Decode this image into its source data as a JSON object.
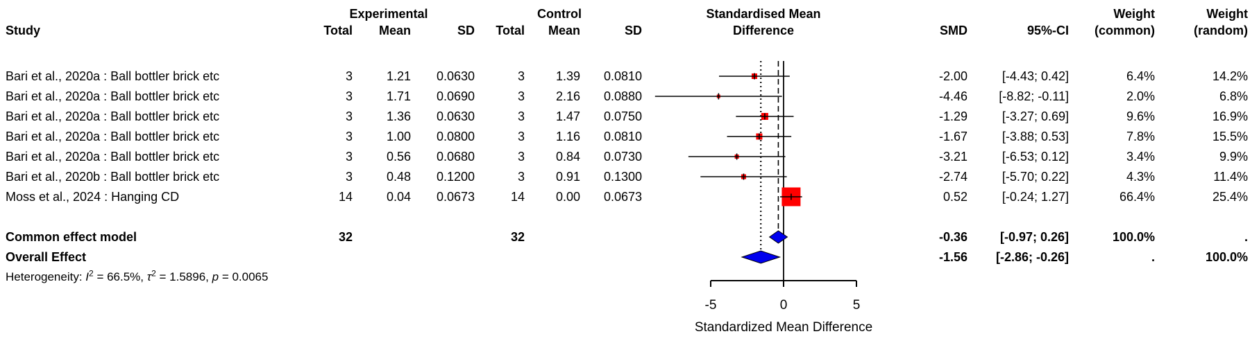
{
  "header": {
    "study": "Study",
    "experimental": "Experimental",
    "control": "Control",
    "smd_line1": "Standardised Mean",
    "smd_line2": "Difference",
    "total": "Total",
    "mean": "Mean",
    "sd": "SD",
    "smd": "SMD",
    "ci": "95%-CI",
    "weight": "Weight",
    "weight_common": "(common)",
    "weight_random": "(random)"
  },
  "chart_data": {
    "type": "forest",
    "effect_measure": "SMD",
    "x_axis": {
      "label": "Standardized Mean Difference",
      "tick_labels": [
        "-5",
        "0",
        "5"
      ],
      "tick_values": [
        -5,
        0,
        5
      ],
      "range": [
        -9,
        6
      ]
    },
    "reference_line": 0,
    "colors": {
      "square": "#ff0000",
      "diamond": "#0000ee",
      "line": "#000000",
      "text": "#000000"
    },
    "studies": [
      {
        "label": "Bari et al., 2020a : Ball bottler brick etc",
        "exp_total": "3",
        "exp_mean": "1.21",
        "exp_sd": "0.0630",
        "ctrl_total": "3",
        "ctrl_mean": "1.39",
        "ctrl_sd": "0.0810",
        "smd": -2.0,
        "ci_low": -4.43,
        "ci_high": 0.42,
        "smd_text": "-2.00",
        "ci_text": "[-4.43; 0.42]",
        "weight_common": 6.4,
        "weight_random": 14.2,
        "weight_common_text": "6.4%",
        "weight_random_text": "14.2%"
      },
      {
        "label": "Bari et al., 2020a : Ball bottler brick etc",
        "exp_total": "3",
        "exp_mean": "1.71",
        "exp_sd": "0.0690",
        "ctrl_total": "3",
        "ctrl_mean": "2.16",
        "ctrl_sd": "0.0880",
        "smd": -4.46,
        "ci_low": -8.82,
        "ci_high": -0.11,
        "smd_text": "-4.46",
        "ci_text": "[-8.82; -0.11]",
        "weight_common": 2.0,
        "weight_random": 6.8,
        "weight_common_text": "2.0%",
        "weight_random_text": "6.8%"
      },
      {
        "label": "Bari et al., 2020a : Ball bottler brick etc",
        "exp_total": "3",
        "exp_mean": "1.36",
        "exp_sd": "0.0630",
        "ctrl_total": "3",
        "ctrl_mean": "1.47",
        "ctrl_sd": "0.0750",
        "smd": -1.29,
        "ci_low": -3.27,
        "ci_high": 0.69,
        "smd_text": "-1.29",
        "ci_text": "[-3.27; 0.69]",
        "weight_common": 9.6,
        "weight_random": 16.9,
        "weight_common_text": "9.6%",
        "weight_random_text": "16.9%"
      },
      {
        "label": "Bari et al., 2020a : Ball bottler brick etc",
        "exp_total": "3",
        "exp_mean": "1.00",
        "exp_sd": "0.0800",
        "ctrl_total": "3",
        "ctrl_mean": "1.16",
        "ctrl_sd": "0.0810",
        "smd": -1.67,
        "ci_low": -3.88,
        "ci_high": 0.53,
        "smd_text": "-1.67",
        "ci_text": "[-3.88; 0.53]",
        "weight_common": 7.8,
        "weight_random": 15.5,
        "weight_common_text": "7.8%",
        "weight_random_text": "15.5%"
      },
      {
        "label": "Bari et al., 2020a : Ball bottler brick etc",
        "exp_total": "3",
        "exp_mean": "0.56",
        "exp_sd": "0.0680",
        "ctrl_total": "3",
        "ctrl_mean": "0.84",
        "ctrl_sd": "0.0730",
        "smd": -3.21,
        "ci_low": -6.53,
        "ci_high": 0.12,
        "smd_text": "-3.21",
        "ci_text": "[-6.53; 0.12]",
        "weight_common": 3.4,
        "weight_random": 9.9,
        "weight_common_text": "3.4%",
        "weight_random_text": "9.9%"
      },
      {
        "label": "Bari et al., 2020b : Ball bottler brick etc",
        "exp_total": "3",
        "exp_mean": "0.48",
        "exp_sd": "0.1200",
        "ctrl_total": "3",
        "ctrl_mean": "0.91",
        "ctrl_sd": "0.1300",
        "smd": -2.74,
        "ci_low": -5.7,
        "ci_high": 0.22,
        "smd_text": "-2.74",
        "ci_text": "[-5.70; 0.22]",
        "weight_common": 4.3,
        "weight_random": 11.4,
        "weight_common_text": "4.3%",
        "weight_random_text": "11.4%"
      },
      {
        "label": "Moss et al., 2024 : Hanging CD",
        "exp_total": "14",
        "exp_mean": "0.04",
        "exp_sd": "0.0673",
        "ctrl_total": "14",
        "ctrl_mean": "0.00",
        "ctrl_sd": "0.0673",
        "smd": 0.52,
        "ci_low": -0.24,
        "ci_high": 1.27,
        "smd_text": "0.52",
        "ci_text": "[-0.24; 1.27]",
        "weight_common": 66.4,
        "weight_random": 25.4,
        "weight_common_text": "66.4%",
        "weight_random_text": "25.4%"
      }
    ],
    "summaries": [
      {
        "label": "Common effect model",
        "exp_total": "32",
        "ctrl_total": "32",
        "smd": -0.36,
        "ci_low": -0.97,
        "ci_high": 0.26,
        "smd_text": "-0.36",
        "ci_text": "[-0.97; 0.26]",
        "weight_common_text": "100.0%",
        "weight_random_text": ".",
        "line_style": "dashed"
      },
      {
        "label": "Overall Effect",
        "exp_total": "",
        "ctrl_total": "",
        "smd": -1.56,
        "ci_low": -2.86,
        "ci_high": -0.26,
        "smd_text": "-1.56",
        "ci_text": "[-2.86; -0.26]",
        "weight_common_text": ".",
        "weight_random_text": "100.0%",
        "line_style": "dotted"
      }
    ],
    "heterogeneity": {
      "text": "Heterogeneity: I² = 66.5%, τ² = 1.5896, p = 0.0065",
      "parts": [
        {
          "text": "Heterogeneity: "
        },
        {
          "text": "I",
          "italic": true
        },
        {
          "text": "2",
          "sup": true
        },
        {
          "text": " = 66.5%, "
        },
        {
          "text": "τ",
          "italic": true
        },
        {
          "text": "2",
          "sup": true
        },
        {
          "text": " = 1.5896, "
        },
        {
          "text": "p",
          "italic": true
        },
        {
          "text": " = 0.0065"
        }
      ]
    }
  }
}
